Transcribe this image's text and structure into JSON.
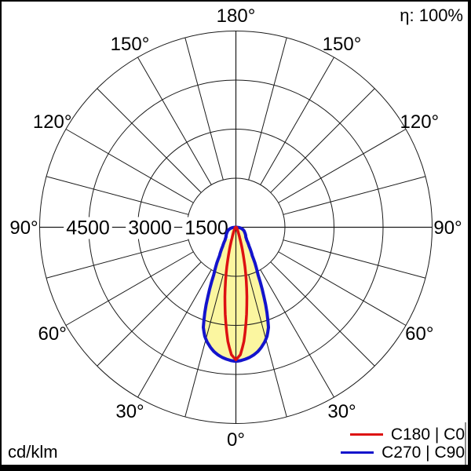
{
  "header": {
    "efficiency": "η: 100%"
  },
  "footer": {
    "unit": "cd/klm"
  },
  "legend": {
    "items": [
      {
        "label": "C180 | C0",
        "color": "#dd1111"
      },
      {
        "label": "C270 | C90",
        "color": "#1414cc"
      }
    ]
  },
  "chart_data": {
    "type": "line",
    "subtype": "polar-luminous-intensity-distribution",
    "title": "",
    "units": "cd/klm",
    "efficiency_label": "η: 100%",
    "max_value": 6000,
    "ring_step": 1500,
    "rings": [
      1500,
      3000,
      4500,
      6000
    ],
    "ring_labels": [
      {
        "text": "4500",
        "x": 112
      },
      {
        "text": "3000",
        "x": 191
      },
      {
        "text": "1500",
        "x": 263
      }
    ],
    "spoke_step_deg": 15,
    "angle_label_step_deg": 30,
    "angle_labels": [
      {
        "text": "0°",
        "phi": 0,
        "side": 0
      },
      {
        "text": "30°",
        "phi": 30,
        "side": -1
      },
      {
        "text": "30°",
        "phi": 30,
        "side": 1
      },
      {
        "text": "60°",
        "phi": 60,
        "side": -1
      },
      {
        "text": "60°",
        "phi": 60,
        "side": 1
      },
      {
        "text": "90°",
        "phi": 90,
        "side": -1
      },
      {
        "text": "90°",
        "phi": 90,
        "side": 1
      },
      {
        "text": "120°",
        "phi": 120,
        "side": -1
      },
      {
        "text": "120°",
        "phi": 120,
        "side": 1
      },
      {
        "text": "150°",
        "phi": 150,
        "side": -1
      },
      {
        "text": "150°",
        "phi": 150,
        "side": 1
      },
      {
        "text": "180°",
        "phi": 180,
        "side": 0
      }
    ],
    "fill_color": "#fbf6a0",
    "gamma_deg": [
      0,
      2,
      4,
      6,
      8,
      10,
      12,
      14,
      16,
      18,
      20,
      22,
      25,
      30,
      35,
      40,
      45,
      50,
      55,
      60,
      65,
      70,
      75,
      80,
      85,
      90
    ],
    "series": [
      {
        "name": "C180 | C0",
        "color": "#dd1111",
        "values_cd_klm": [
          4050,
          3900,
          3500,
          2950,
          2400,
          1900,
          1430,
          1020,
          710,
          490,
          340,
          250,
          170,
          100,
          70,
          55,
          45,
          38,
          32,
          27,
          22,
          17,
          12,
          8,
          4,
          0
        ]
      },
      {
        "name": "C270 | C90",
        "color": "#1414cc",
        "values_cd_klm": [
          4100,
          4080,
          4045,
          4000,
          3940,
          3860,
          3750,
          3620,
          3460,
          3220,
          2780,
          2290,
          1600,
          1000,
          700,
          520,
          430,
          390,
          350,
          310,
          280,
          240,
          200,
          150,
          80,
          0
        ]
      }
    ]
  }
}
